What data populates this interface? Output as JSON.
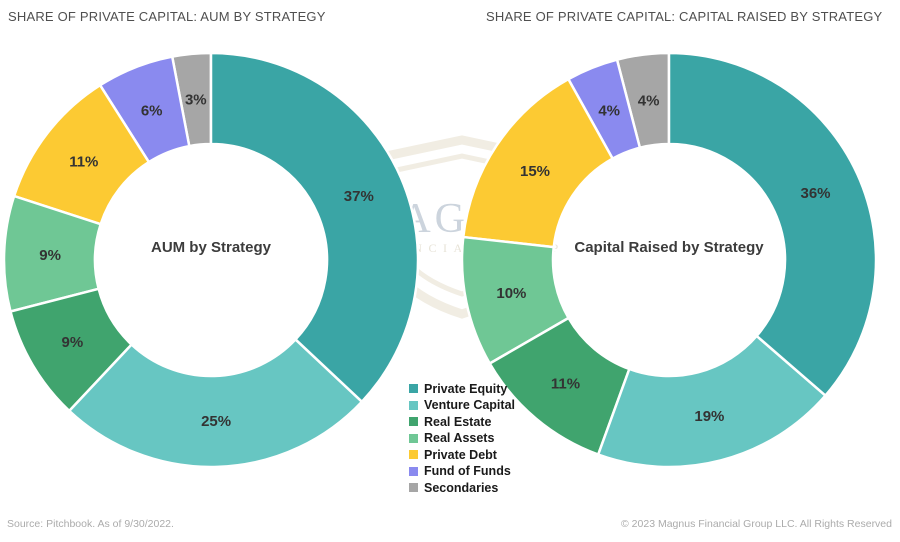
{
  "charts": [
    {
      "title": "SHARE OF PRIVATE CAPITAL: AUM BY STRATEGY",
      "center_label": "AUM by Strategy"
    },
    {
      "title": "SHARE OF PRIVATE CAPITAL: CAPITAL RAISED BY STRATEGY",
      "center_label": "Capital Raised by Strategy"
    }
  ],
  "chart_data": [
    {
      "type": "pie",
      "subtype": "donut",
      "title": "SHARE OF PRIVATE CAPITAL: AUM BY STRATEGY",
      "center_label": "AUM by Strategy",
      "categories": [
        "Private Equity",
        "Venture Capital",
        "Real Estate",
        "Real Assets",
        "Private Debt",
        "Fund of Funds",
        "Secondaries"
      ],
      "values": [
        37,
        25,
        9,
        9,
        11,
        6,
        3
      ],
      "labels": [
        "37%",
        "25%",
        "9%",
        "9%",
        "11%",
        "6%",
        "3%"
      ],
      "unit": "%",
      "start_angle": "12-oclock",
      "direction": "clockwise",
      "legend_position": "bottom-center-shared"
    },
    {
      "type": "pie",
      "subtype": "donut",
      "title": "SHARE OF PRIVATE CAPITAL: CAPITAL RAISED BY STRATEGY",
      "center_label": "Capital Raised by Strategy",
      "categories": [
        "Private Equity",
        "Venture Capital",
        "Real Estate",
        "Real Assets",
        "Private Debt",
        "Fund of Funds",
        "Secondaries"
      ],
      "values": [
        36,
        19,
        11,
        10,
        15,
        4,
        4
      ],
      "labels": [
        "36%",
        "19%",
        "11%",
        "10%",
        "15%",
        "4%",
        "4%"
      ],
      "unit": "%",
      "start_angle": "12-oclock",
      "direction": "clockwise",
      "legend_position": "bottom-center-shared"
    }
  ],
  "palette": {
    "Private Equity": "#3AA5A5",
    "Venture Capital": "#67C6C2",
    "Real Estate": "#40A46E",
    "Real Assets": "#6FC795",
    "Private Debt": "#FCCA33",
    "Fund of Funds": "#8A8AEF",
    "Secondaries": "#A6A6A6"
  },
  "legend": {
    "items": [
      "Private Equity",
      "Venture Capital",
      "Real Estate",
      "Real Assets",
      "Private Debt",
      "Fund of Funds",
      "Secondaries"
    ]
  },
  "watermark": {
    "line1": "MAGNUS",
    "line2": "FINANCIAL GROUP"
  },
  "footer": {
    "source": "Source: Pitchbook. As of 9/30/2022.",
    "copyright": "© 2023 Magnus Financial Group LLC. All Rights Reserved"
  },
  "style_colors": {
    "title_text": "#4f4f4f",
    "slice_label_text": "#333333",
    "center_label_text": "#3c3c3c",
    "legend_text": "#1a1a1a",
    "footer_text": "#ababab",
    "watermark_shield": "#f1ede3",
    "watermark_word": "#ccd4dd",
    "watermark_sub": "#e7e3d7"
  }
}
